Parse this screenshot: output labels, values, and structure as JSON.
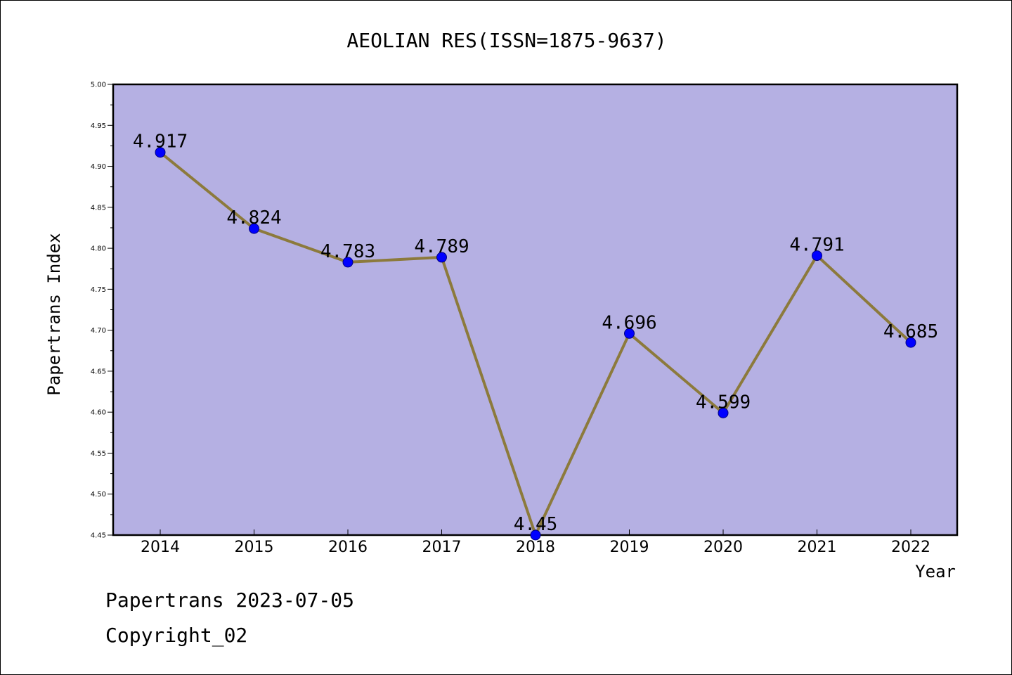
{
  "chart_data": {
    "type": "line",
    "title": "AEOLIAN RES(ISSN=1875-9637)",
    "xlabel": "Year",
    "ylabel": "Papertrans Index",
    "x": [
      "2014",
      "2015",
      "2016",
      "2017",
      "2018",
      "2019",
      "2020",
      "2021",
      "2022"
    ],
    "series": [
      {
        "values": [
          4.917,
          4.824,
          4.783,
          4.789,
          4.45,
          4.696,
          4.599,
          4.791,
          4.685
        ],
        "labels": [
          "4.917",
          "4.824",
          "4.783",
          "4.789",
          "4.45",
          "4.696",
          "4.599",
          "4.791",
          "4.685"
        ]
      }
    ],
    "ylim": [
      4.45,
      5.0
    ],
    "yticks": [
      "4.45",
      "4.50",
      "4.55",
      "4.60",
      "4.65",
      "4.70",
      "4.75",
      "4.80",
      "4.85",
      "4.90",
      "4.95",
      "5.00"
    ],
    "grid": false,
    "colors": {
      "plot_background": "#b5b0e3",
      "line": "#8c7a3c",
      "marker": "#0000ff",
      "marker_edge": "#000080"
    }
  },
  "footer": {
    "line1": "Papertrans 2023-07-05",
    "line2": "Copyright_02"
  }
}
